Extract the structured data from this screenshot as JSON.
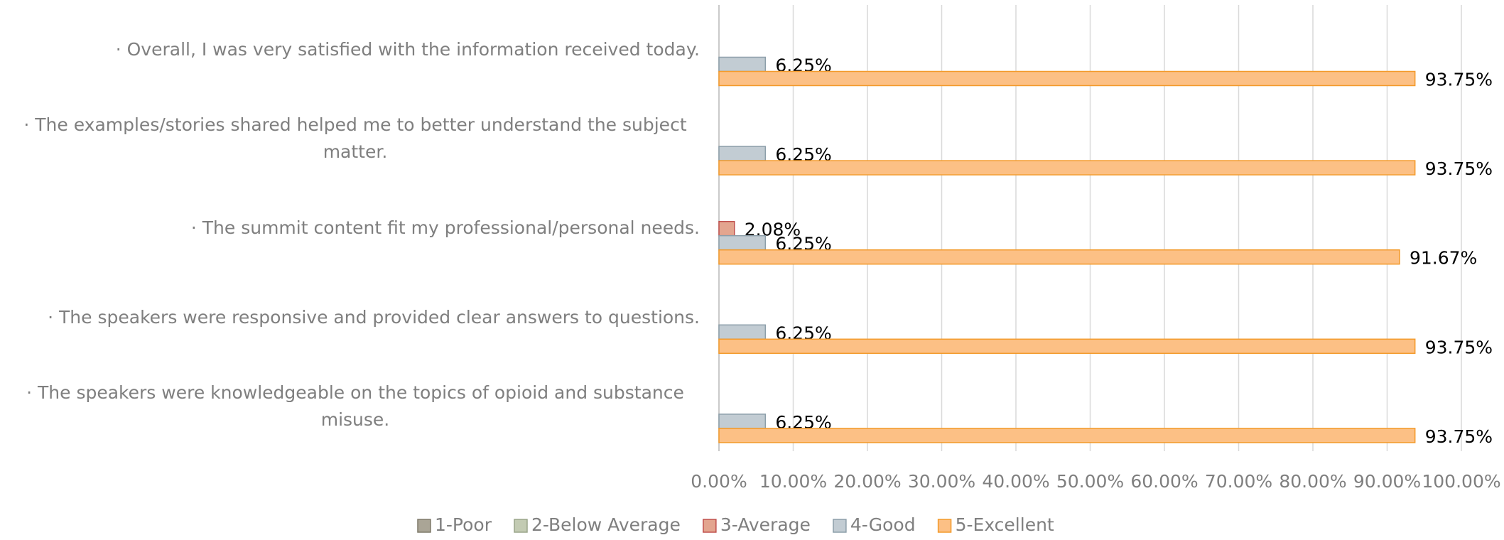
{
  "chart_data": {
    "type": "barh",
    "categories": [
      "· Overall, I was very satisfied with the information received today.",
      "· The examples/stories shared helped me to better understand the subject matter.",
      "· The summit content fit my professional/personal needs.",
      "· The speakers were responsive and provided clear answers to questions.",
      "· The speakers were knowledgeable on the topics of opioid and substance misuse."
    ],
    "series": [
      {
        "name": "1-Poor",
        "color": "#aaa596",
        "edgecolor": "#7f7a6a",
        "values": [
          0,
          0,
          0,
          0,
          0
        ],
        "value_labels": [
          null,
          null,
          null,
          null,
          null
        ]
      },
      {
        "name": "2-Below Average",
        "color": "#c3cbb3",
        "edgecolor": "#9aa58a",
        "values": [
          0,
          0,
          0,
          0,
          0
        ],
        "value_labels": [
          null,
          null,
          null,
          null,
          null
        ]
      },
      {
        "name": "3-Average",
        "color": "#e3a58f",
        "edgecolor": "#c0504d",
        "values": [
          0,
          0,
          2.08,
          0,
          0
        ],
        "value_labels": [
          null,
          null,
          "2.08%",
          null,
          null
        ]
      },
      {
        "name": "4-Good",
        "color": "#c2ccd3",
        "edgecolor": "#8c9ea9",
        "values": [
          6.25,
          6.25,
          6.25,
          6.25,
          6.25
        ],
        "value_labels": [
          "6.25%",
          "6.25%",
          "6.25%",
          "6.25%",
          "6.25%"
        ]
      },
      {
        "name": "5-Excellent",
        "color": "#fcc085",
        "edgecolor": "#f39a2a",
        "values": [
          93.75,
          93.75,
          91.67,
          93.75,
          93.75
        ],
        "value_labels": [
          "93.75%",
          "93.75%",
          "91.67%",
          "93.75%",
          "93.75%"
        ]
      }
    ],
    "xlim": [
      0,
      100
    ],
    "xticks": [
      {
        "value": 0,
        "label": "0.00%"
      },
      {
        "value": 10,
        "label": "10.00%"
      },
      {
        "value": 20,
        "label": "20.00%"
      },
      {
        "value": 30,
        "label": "30.00%"
      },
      {
        "value": 40,
        "label": "40.00%"
      },
      {
        "value": 50,
        "label": "50.00%"
      },
      {
        "value": 60,
        "label": "60.00%"
      },
      {
        "value": 70,
        "label": "70.00%"
      },
      {
        "value": 80,
        "label": "80.00%"
      },
      {
        "value": 90,
        "label": "90.00%"
      },
      {
        "value": 100,
        "label": "100.00%"
      }
    ],
    "grid": true,
    "legend": "bottom"
  }
}
